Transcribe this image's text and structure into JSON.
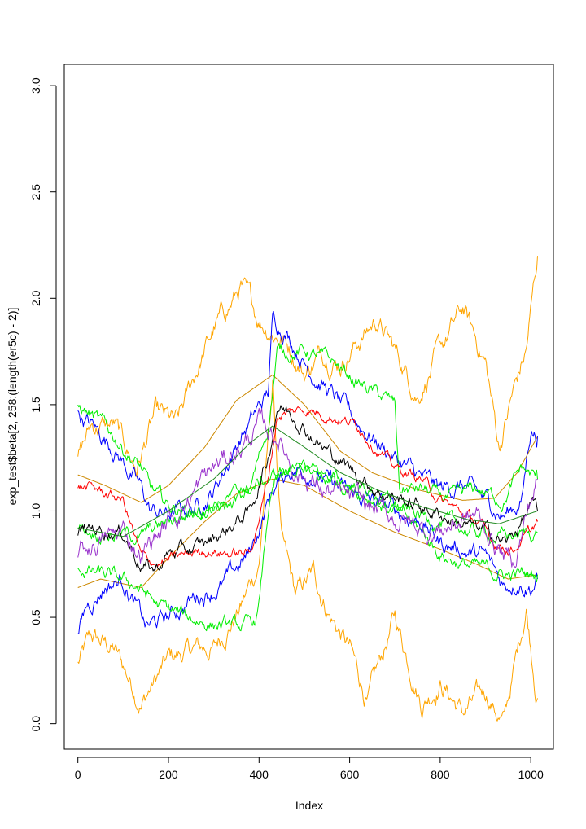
{
  "chart_data": {
    "type": "line",
    "xlabel": "Index",
    "ylabel": "exp_test$beta[2, 258:(length(er5c) - 2)]",
    "xlim": [
      -30,
      1050
    ],
    "ylim": [
      -0.12,
      3.1
    ],
    "x_ticks": [
      0,
      200,
      400,
      600,
      800,
      1000
    ],
    "y_ticks": [
      0.0,
      0.5,
      1.0,
      1.5,
      2.0,
      2.5,
      3.0
    ],
    "x_tick_labels": [
      "0",
      "200",
      "400",
      "600",
      "800",
      "1000"
    ],
    "y_tick_labels": [
      "0.0",
      "0.5",
      "1.0",
      "1.5",
      "2.0",
      "2.5",
      "3.0"
    ],
    "grid": false,
    "legend": "none",
    "series": [
      {
        "color": "#FFA500",
        "noise": 0.03,
        "points": [
          [
            0,
            0.28
          ],
          [
            30,
            0.4
          ],
          [
            80,
            0.35
          ],
          [
            140,
            0.1
          ],
          [
            200,
            0.3
          ],
          [
            260,
            0.35
          ],
          [
            300,
            0.35
          ],
          [
            360,
            0.55
          ],
          [
            400,
            0.75
          ],
          [
            430,
            1.6
          ],
          [
            450,
            0.85
          ],
          [
            480,
            0.6
          ],
          [
            520,
            0.7
          ],
          [
            560,
            0.5
          ],
          [
            600,
            0.35
          ],
          [
            640,
            0.1
          ],
          [
            700,
            0.5
          ],
          [
            760,
            0.1
          ],
          [
            800,
            0.2
          ],
          [
            850,
            0.05
          ],
          [
            900,
            0.15
          ],
          [
            940,
            0.0
          ],
          [
            990,
            0.55
          ],
          [
            1015,
            0.12
          ]
        ]
      },
      {
        "color": "#FFA500",
        "noise": 0.03,
        "points": [
          [
            0,
            1.25
          ],
          [
            30,
            1.4
          ],
          [
            80,
            1.4
          ],
          [
            130,
            1.2
          ],
          [
            170,
            1.45
          ],
          [
            220,
            1.4
          ],
          [
            260,
            1.65
          ],
          [
            300,
            1.85
          ],
          [
            360,
            2.05
          ],
          [
            400,
            1.9
          ],
          [
            430,
            1.85
          ],
          [
            460,
            1.8
          ],
          [
            500,
            1.65
          ],
          [
            540,
            1.75
          ],
          [
            580,
            1.7
          ],
          [
            620,
            1.8
          ],
          [
            660,
            1.9
          ],
          [
            700,
            1.75
          ],
          [
            750,
            1.55
          ],
          [
            800,
            1.75
          ],
          [
            850,
            1.95
          ],
          [
            900,
            1.7
          ],
          [
            930,
            1.3
          ],
          [
            960,
            1.55
          ],
          [
            990,
            1.75
          ],
          [
            1015,
            2.2
          ]
        ]
      },
      {
        "color": "#CC8800",
        "noise": 0.0,
        "points": [
          [
            0,
            1.17
          ],
          [
            60,
            1.12
          ],
          [
            140,
            1.04
          ],
          [
            200,
            1.12
          ],
          [
            280,
            1.3
          ],
          [
            350,
            1.52
          ],
          [
            430,
            1.64
          ],
          [
            500,
            1.5
          ],
          [
            580,
            1.28
          ],
          [
            650,
            1.18
          ],
          [
            750,
            1.1
          ],
          [
            850,
            1.05
          ],
          [
            920,
            1.06
          ],
          [
            970,
            1.18
          ],
          [
            1015,
            1.35
          ]
        ]
      },
      {
        "color": "#CC8800",
        "noise": 0.0,
        "points": [
          [
            0,
            0.64
          ],
          [
            50,
            0.68
          ],
          [
            140,
            0.64
          ],
          [
            200,
            0.78
          ],
          [
            280,
            0.95
          ],
          [
            350,
            1.08
          ],
          [
            430,
            1.15
          ],
          [
            500,
            1.12
          ],
          [
            600,
            1.0
          ],
          [
            700,
            0.9
          ],
          [
            800,
            0.82
          ],
          [
            880,
            0.75
          ],
          [
            950,
            0.68
          ],
          [
            1015,
            0.7
          ]
        ]
      },
      {
        "color": "#0000FF",
        "noise": 0.025,
        "points": [
          [
            0,
            1.45
          ],
          [
            30,
            1.4
          ],
          [
            80,
            1.3
          ],
          [
            140,
            1.1
          ],
          [
            160,
            1.0
          ],
          [
            200,
            0.98
          ],
          [
            260,
            1.02
          ],
          [
            300,
            1.1
          ],
          [
            360,
            1.35
          ],
          [
            420,
            1.55
          ],
          [
            430,
            1.9
          ],
          [
            460,
            1.85
          ],
          [
            500,
            1.7
          ],
          [
            560,
            1.55
          ],
          [
            600,
            1.45
          ],
          [
            650,
            1.35
          ],
          [
            700,
            1.25
          ],
          [
            760,
            1.15
          ],
          [
            800,
            1.1
          ],
          [
            850,
            1.12
          ],
          [
            900,
            1.05
          ],
          [
            940,
            0.98
          ],
          [
            980,
            1.05
          ],
          [
            1000,
            1.4
          ],
          [
            1015,
            1.35
          ]
        ]
      },
      {
        "color": "#0000FF",
        "noise": 0.025,
        "points": [
          [
            0,
            0.4
          ],
          [
            20,
            0.55
          ],
          [
            60,
            0.65
          ],
          [
            100,
            0.68
          ],
          [
            140,
            0.5
          ],
          [
            150,
            0.45
          ],
          [
            200,
            0.5
          ],
          [
            260,
            0.6
          ],
          [
            320,
            0.65
          ],
          [
            380,
            0.8
          ],
          [
            430,
            1.1
          ],
          [
            470,
            1.2
          ],
          [
            520,
            1.18
          ],
          [
            580,
            1.1
          ],
          [
            640,
            1.05
          ],
          [
            700,
            1.0
          ],
          [
            760,
            0.95
          ],
          [
            800,
            0.85
          ],
          [
            850,
            0.82
          ],
          [
            900,
            0.78
          ],
          [
            940,
            0.65
          ],
          [
            970,
            0.68
          ],
          [
            1000,
            0.65
          ],
          [
            1015,
            0.68
          ]
        ]
      },
      {
        "color": "#00EE00",
        "noise": 0.02,
        "points": [
          [
            0,
            1.5
          ],
          [
            30,
            1.45
          ],
          [
            80,
            1.35
          ],
          [
            140,
            1.2
          ],
          [
            160,
            1.1
          ],
          [
            200,
            1.02
          ],
          [
            260,
            1.0
          ],
          [
            320,
            1.0
          ],
          [
            380,
            1.1
          ],
          [
            420,
            1.4
          ],
          [
            440,
            1.75
          ],
          [
            500,
            1.75
          ],
          [
            560,
            1.7
          ],
          [
            620,
            1.6
          ],
          [
            660,
            1.55
          ],
          [
            700,
            1.5
          ],
          [
            710,
            1.1
          ],
          [
            760,
            1.1
          ],
          [
            820,
            1.05
          ],
          [
            880,
            1.1
          ],
          [
            940,
            1.05
          ],
          [
            980,
            1.2
          ],
          [
            1015,
            1.15
          ]
        ]
      },
      {
        "color": "#00EE00",
        "noise": 0.02,
        "points": [
          [
            0,
            0.75
          ],
          [
            20,
            0.72
          ],
          [
            80,
            0.68
          ],
          [
            130,
            0.65
          ],
          [
            180,
            0.55
          ],
          [
            240,
            0.5
          ],
          [
            300,
            0.47
          ],
          [
            360,
            0.45
          ],
          [
            390,
            0.47
          ],
          [
            400,
            0.55
          ],
          [
            420,
            1.0
          ],
          [
            440,
            1.15
          ],
          [
            500,
            1.2
          ],
          [
            560,
            1.15
          ],
          [
            620,
            1.1
          ],
          [
            700,
            1.0
          ],
          [
            760,
            0.9
          ],
          [
            800,
            0.8
          ],
          [
            850,
            0.75
          ],
          [
            900,
            0.72
          ],
          [
            950,
            0.7
          ],
          [
            1015,
            0.7
          ]
        ]
      },
      {
        "color": "#00EE00",
        "noise": 0.02,
        "points": [
          [
            0,
            0.92
          ],
          [
            60,
            0.9
          ],
          [
            140,
            0.88
          ],
          [
            200,
            0.95
          ],
          [
            280,
            1.02
          ],
          [
            360,
            1.08
          ],
          [
            420,
            1.15
          ],
          [
            480,
            1.2
          ],
          [
            560,
            1.15
          ],
          [
            640,
            1.1
          ],
          [
            720,
            1.0
          ],
          [
            800,
            0.95
          ],
          [
            870,
            0.9
          ],
          [
            940,
            0.88
          ],
          [
            1015,
            0.9
          ]
        ]
      },
      {
        "color": "#FF0000",
        "noise": 0.015,
        "points": [
          [
            0,
            1.12
          ],
          [
            40,
            1.1
          ],
          [
            100,
            1.05
          ],
          [
            140,
            0.78
          ],
          [
            180,
            0.75
          ],
          [
            220,
            0.78
          ],
          [
            280,
            0.82
          ],
          [
            340,
            0.8
          ],
          [
            380,
            0.8
          ],
          [
            420,
            1.15
          ],
          [
            440,
            1.45
          ],
          [
            500,
            1.48
          ],
          [
            560,
            1.45
          ],
          [
            620,
            1.4
          ],
          [
            660,
            1.3
          ],
          [
            700,
            1.2
          ],
          [
            760,
            1.15
          ],
          [
            800,
            1.05
          ],
          [
            840,
            1.0
          ],
          [
            880,
            0.95
          ],
          [
            920,
            0.85
          ],
          [
            960,
            0.82
          ],
          [
            1000,
            0.9
          ],
          [
            1015,
            0.95
          ]
        ]
      },
      {
        "color": "#000000",
        "noise": 0.02,
        "points": [
          [
            0,
            0.9
          ],
          [
            40,
            0.92
          ],
          [
            100,
            0.9
          ],
          [
            140,
            0.75
          ],
          [
            170,
            0.72
          ],
          [
            200,
            0.8
          ],
          [
            260,
            0.82
          ],
          [
            320,
            0.9
          ],
          [
            380,
            1.0
          ],
          [
            420,
            1.25
          ],
          [
            440,
            1.5
          ],
          [
            480,
            1.45
          ],
          [
            540,
            1.3
          ],
          [
            600,
            1.2
          ],
          [
            660,
            1.1
          ],
          [
            720,
            1.05
          ],
          [
            780,
            1.0
          ],
          [
            840,
            0.95
          ],
          [
            900,
            0.9
          ],
          [
            950,
            0.85
          ],
          [
            1000,
            1.02
          ],
          [
            1015,
            1.0
          ]
        ]
      },
      {
        "color": "#9933CC",
        "noise": 0.03,
        "points": [
          [
            0,
            0.8
          ],
          [
            40,
            0.85
          ],
          [
            100,
            0.9
          ],
          [
            140,
            0.8
          ],
          [
            180,
            0.9
          ],
          [
            240,
            1.05
          ],
          [
            300,
            1.2
          ],
          [
            360,
            1.3
          ],
          [
            400,
            1.4
          ],
          [
            440,
            1.35
          ],
          [
            480,
            1.2
          ],
          [
            540,
            1.1
          ],
          [
            600,
            1.05
          ],
          [
            660,
            1.0
          ],
          [
            720,
            0.95
          ],
          [
            780,
            0.9
          ],
          [
            840,
            0.95
          ],
          [
            880,
            0.98
          ],
          [
            920,
            0.85
          ],
          [
            960,
            0.75
          ],
          [
            1000,
            1.05
          ],
          [
            1015,
            1.15
          ]
        ]
      },
      {
        "color": "#228B22",
        "noise": 0.0,
        "points": [
          [
            0,
            0.92
          ],
          [
            100,
            0.88
          ],
          [
            200,
            1.0
          ],
          [
            300,
            1.15
          ],
          [
            380,
            1.32
          ],
          [
            430,
            1.4
          ],
          [
            500,
            1.3
          ],
          [
            580,
            1.18
          ],
          [
            660,
            1.1
          ],
          [
            760,
            1.02
          ],
          [
            860,
            0.96
          ],
          [
            930,
            0.94
          ],
          [
            1015,
            1.0
          ]
        ]
      }
    ]
  }
}
